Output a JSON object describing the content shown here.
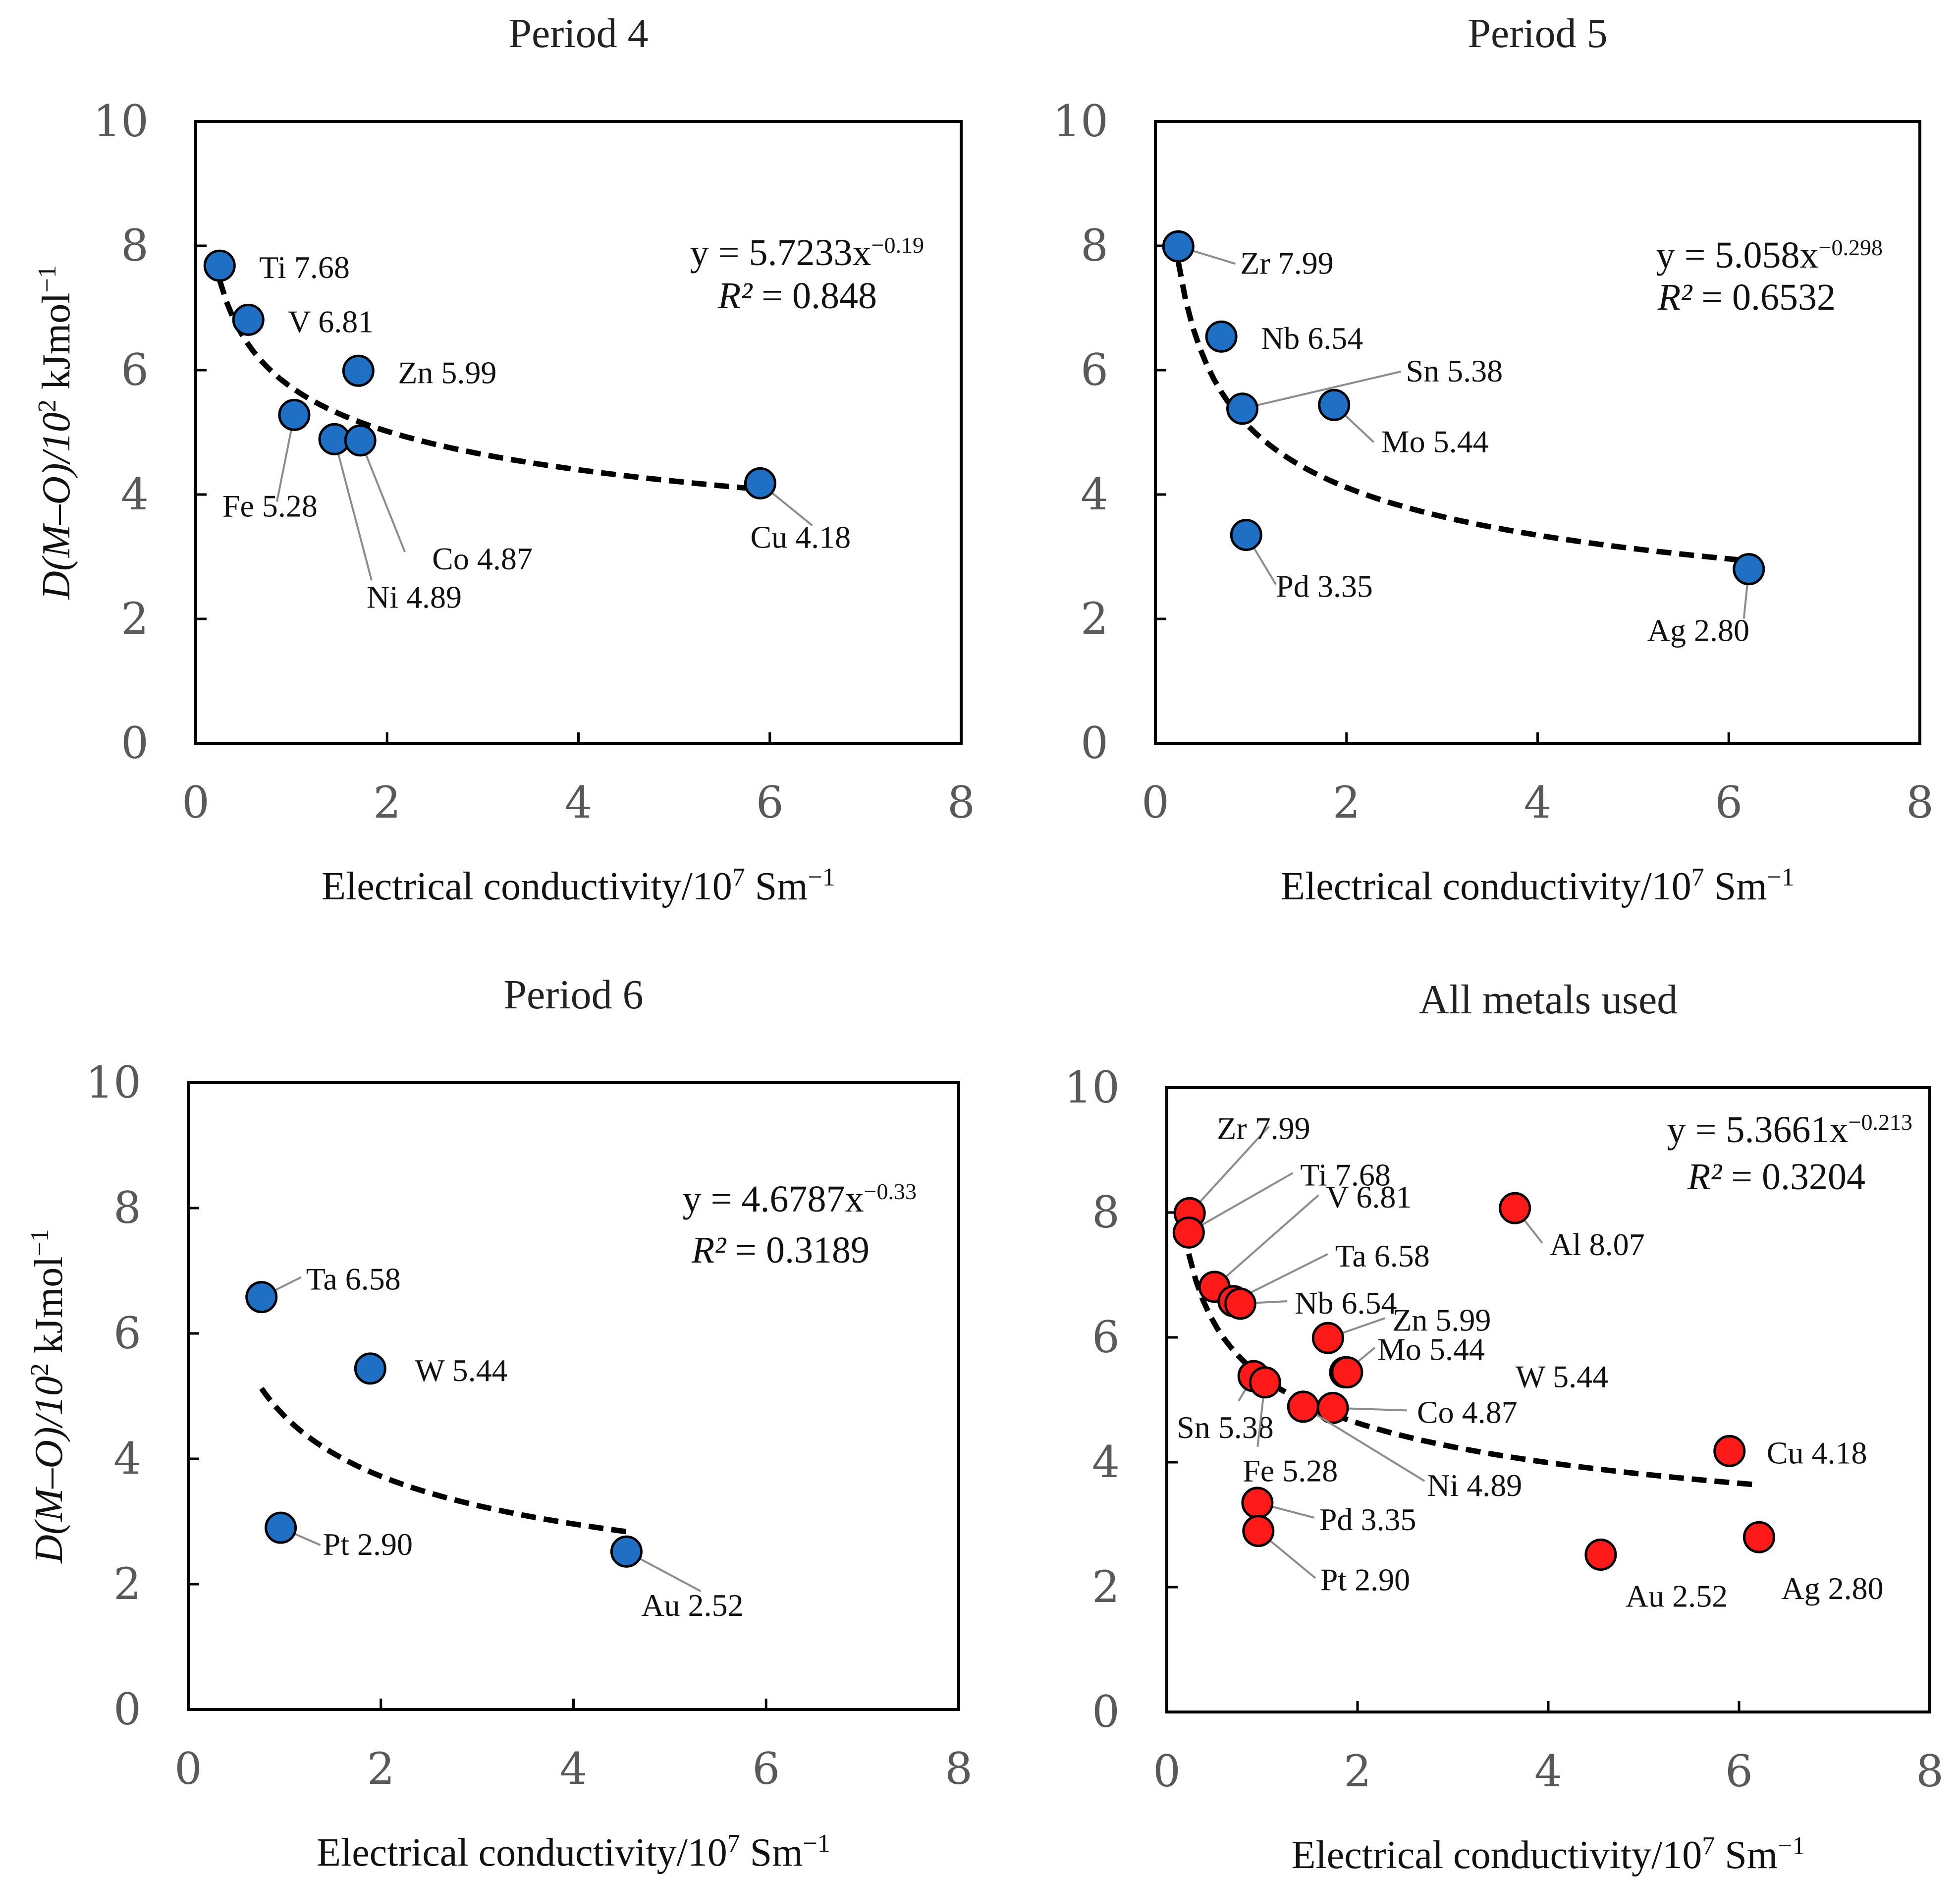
{
  "chart_data": [
    {
      "type": "scatter",
      "title": "Period 4",
      "xlabel": "Electrical conductivity/10",
      "xlabel_sup": "7",
      "xlabel_tail": " Sm",
      "xlabel_tail_sup": "−1",
      "ylabel": "D(M–O)/10",
      "ylabel_sup": "2",
      "ylabel_tail": " kJmol",
      "ylabel_tail_sup": "−1",
      "xlim": [
        0,
        8
      ],
      "ylim": [
        0,
        10
      ],
      "xticks": [
        0,
        2,
        4,
        6,
        8
      ],
      "yticks": [
        0,
        2,
        4,
        6,
        8,
        10
      ],
      "color": "#1f6fc5",
      "points": [
        {
          "element": "Ti",
          "x": 0.25,
          "y": 7.68,
          "label": "Ti 7.68"
        },
        {
          "element": "V",
          "x": 0.55,
          "y": 6.81,
          "label": "V 6.81"
        },
        {
          "element": "Zn",
          "x": 1.7,
          "y": 5.99,
          "label": "Zn 5.99"
        },
        {
          "element": "Fe",
          "x": 1.03,
          "y": 5.28,
          "label": "Fe 5.28"
        },
        {
          "element": "Ni",
          "x": 1.45,
          "y": 4.89,
          "label": "Ni 4.89"
        },
        {
          "element": "Co",
          "x": 1.72,
          "y": 4.87,
          "label": "Co 4.87"
        },
        {
          "element": "Cu",
          "x": 5.9,
          "y": 4.18,
          "label": "Cu 4.18"
        }
      ],
      "fit": {
        "a": 5.7233,
        "b": -0.19,
        "x_range": [
          0.25,
          5.9
        ]
      },
      "equation_prefix": "y = 5.7233x",
      "equation_exponent": "−0.19",
      "r2_label": "R²",
      "r2_value": " = 0.848"
    },
    {
      "type": "scatter",
      "title": "Period 5",
      "xlabel": "Electrical conductivity/10",
      "xlabel_sup": "7",
      "xlabel_tail": " Sm",
      "xlabel_tail_sup": "−1",
      "xlim": [
        0,
        8
      ],
      "ylim": [
        0,
        10
      ],
      "xticks": [
        0,
        2,
        4,
        6,
        8
      ],
      "yticks": [
        0,
        2,
        4,
        6,
        8,
        10
      ],
      "color": "#1f6fc5",
      "points": [
        {
          "element": "Zr",
          "x": 0.24,
          "y": 7.99,
          "label": "Zr 7.99"
        },
        {
          "element": "Nb",
          "x": 0.69,
          "y": 6.54,
          "label": "Nb 6.54"
        },
        {
          "element": "Sn",
          "x": 0.91,
          "y": 5.38,
          "label": "Sn 5.38"
        },
        {
          "element": "Mo",
          "x": 1.87,
          "y": 5.44,
          "label": "Mo 5.44"
        },
        {
          "element": "Pd",
          "x": 0.95,
          "y": 3.35,
          "label": "Pd 3.35"
        },
        {
          "element": "Ag",
          "x": 6.21,
          "y": 2.8,
          "label": "Ag 2.80"
        }
      ],
      "fit": {
        "a": 5.058,
        "b": -0.298,
        "x_range": [
          0.24,
          6.21
        ]
      },
      "equation_prefix": "y = 5.058x",
      "equation_exponent": "−0.298",
      "r2_label": "R²",
      "r2_value": " = 0.6532"
    },
    {
      "type": "scatter",
      "title": "Period 6",
      "xlabel": "Electrical conductivity/10",
      "xlabel_sup": "7",
      "xlabel_tail": " Sm",
      "xlabel_tail_sup": "−1",
      "ylabel": "D(M–O)/10",
      "ylabel_sup": "2",
      "ylabel_tail": " kJmol",
      "ylabel_tail_sup": "−1",
      "xlim": [
        0,
        8
      ],
      "ylim": [
        0,
        10
      ],
      "xticks": [
        0,
        2,
        4,
        6,
        8
      ],
      "yticks": [
        0,
        2,
        4,
        6,
        8,
        10
      ],
      "color": "#1f6fc5",
      "points": [
        {
          "element": "Ta",
          "x": 0.76,
          "y": 6.58,
          "label": "Ta 6.58"
        },
        {
          "element": "W",
          "x": 1.89,
          "y": 5.44,
          "label": "W 5.44"
        },
        {
          "element": "Pt",
          "x": 0.96,
          "y": 2.9,
          "label": "Pt 2.90"
        },
        {
          "element": "Au",
          "x": 4.55,
          "y": 2.52,
          "label": "Au 2.52"
        }
      ],
      "fit": {
        "a": 4.6787,
        "b": -0.33,
        "x_range": [
          0.76,
          4.55
        ]
      },
      "equation_prefix": "y = 4.6787x",
      "equation_exponent": "−0.33",
      "r2_label": "R²",
      "r2_value": " = 0.3189"
    },
    {
      "type": "scatter",
      "title": "All metals used",
      "xlabel": "Electrical conductivity/10",
      "xlabel_sup": "7",
      "xlabel_tail": " Sm",
      "xlabel_tail_sup": "−1",
      "xlim": [
        0,
        8
      ],
      "ylim": [
        0,
        10
      ],
      "xticks": [
        0,
        2,
        4,
        6,
        8
      ],
      "yticks": [
        0,
        2,
        4,
        6,
        8,
        10
      ],
      "color": "#ff1a1a",
      "points": [
        {
          "element": "Zr",
          "x": 0.24,
          "y": 7.99,
          "label": "Zr 7.99"
        },
        {
          "element": "Ti",
          "x": 0.23,
          "y": 7.68,
          "label": "Ti 7.68"
        },
        {
          "element": "V",
          "x": 0.5,
          "y": 6.81,
          "label": "V 6.81"
        },
        {
          "element": "Ta",
          "x": 0.7,
          "y": 6.58,
          "label": "Ta 6.58"
        },
        {
          "element": "Nb",
          "x": 0.77,
          "y": 6.54,
          "label": "Nb 6.54"
        },
        {
          "element": "Al",
          "x": 3.65,
          "y": 8.07,
          "label": "Al 8.07"
        },
        {
          "element": "Zn",
          "x": 1.69,
          "y": 5.99,
          "label": "Zn 5.99"
        },
        {
          "element": "Mo",
          "x": 1.87,
          "y": 5.44,
          "label": "Mo 5.44"
        },
        {
          "element": "W",
          "x": 1.89,
          "y": 5.44,
          "label": "W 5.44"
        },
        {
          "element": "Sn",
          "x": 0.91,
          "y": 5.38,
          "label": "Sn 5.38"
        },
        {
          "element": "Fe",
          "x": 1.03,
          "y": 5.28,
          "label": "Fe 5.28"
        },
        {
          "element": "Co",
          "x": 1.74,
          "y": 4.87,
          "label": "Co 4.87"
        },
        {
          "element": "Ni",
          "x": 1.43,
          "y": 4.89,
          "label": "Ni 4.89"
        },
        {
          "element": "Cu",
          "x": 5.9,
          "y": 4.18,
          "label": "Cu 4.18"
        },
        {
          "element": "Pd",
          "x": 0.95,
          "y": 3.35,
          "label": "Pd 3.35"
        },
        {
          "element": "Pt",
          "x": 0.96,
          "y": 2.9,
          "label": "Pt 2.90"
        },
        {
          "element": "Au",
          "x": 4.55,
          "y": 2.52,
          "label": "Au 2.52"
        },
        {
          "element": "Ag",
          "x": 6.21,
          "y": 2.8,
          "label": "Ag 2.80"
        }
      ],
      "fit": {
        "a": 5.3661,
        "b": -0.213,
        "x_range": [
          0.23,
          6.21
        ]
      },
      "equation_prefix": "y = 5.3661x",
      "equation_exponent": "−0.213",
      "r2_label": "R²",
      "r2_value": " = 0.3204"
    }
  ]
}
